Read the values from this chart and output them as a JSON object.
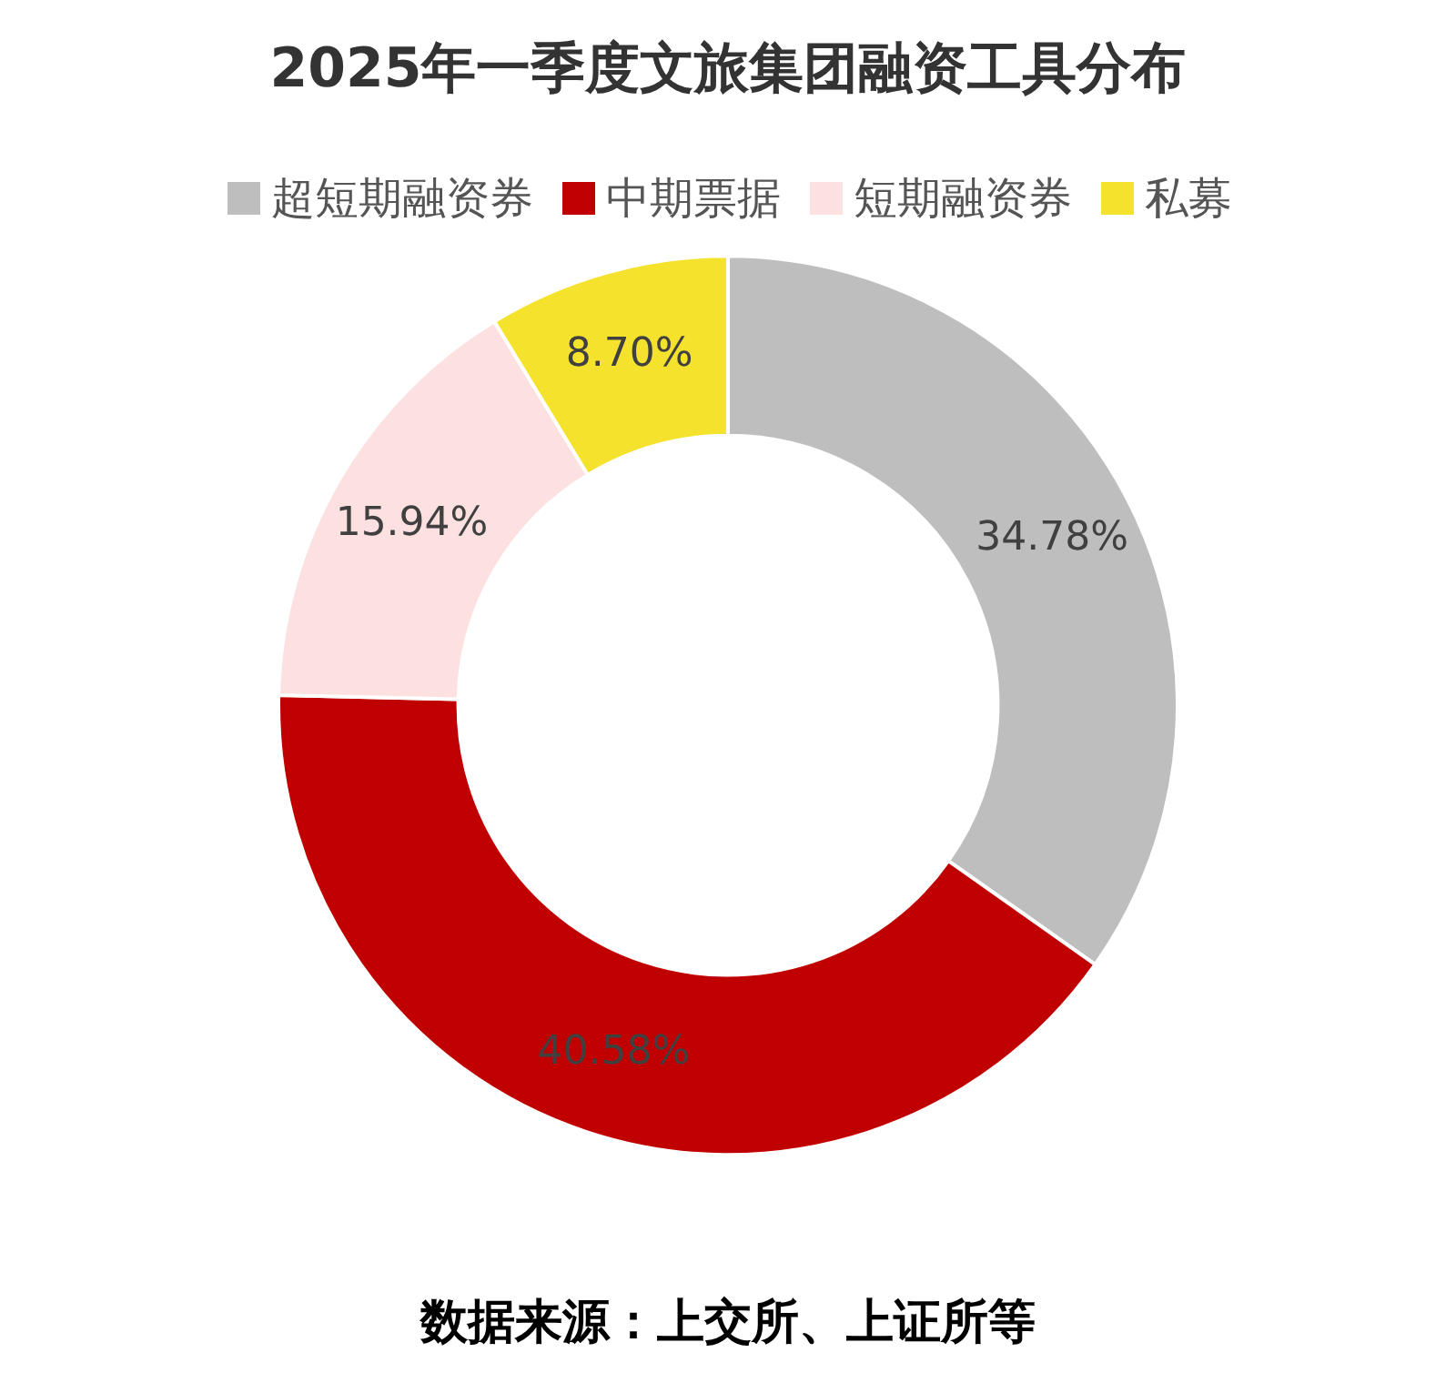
{
  "chart_data": {
    "type": "donut",
    "title": "2025年一季度文旅集团融资工具分布",
    "categories": [
      "超短期融资券",
      "中期票据",
      "短期融资券",
      "私募"
    ],
    "values": [
      34.78,
      40.58,
      15.94,
      8.7
    ],
    "colors": [
      "#bfbebe",
      "#c00000",
      "#fde0e0",
      "#f5e22c"
    ],
    "value_labels": [
      "34.78%",
      "40.58%",
      "15.94%",
      "8.70%"
    ],
    "legend": "top",
    "annotations": [
      "数据来源：上交所、上证所等"
    ]
  }
}
